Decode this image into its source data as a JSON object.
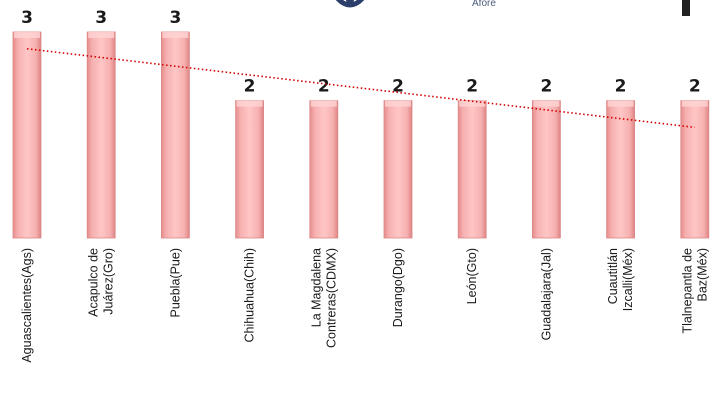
{
  "header": {
    "logo_text": "Afore"
  },
  "colors": {
    "bar_fill": "#f4a3a3",
    "bar_edge": "#d98888",
    "trendline": "#d40000"
  },
  "chart_data": {
    "type": "bar",
    "title": "",
    "xlabel": "",
    "ylabel": "",
    "categories": [
      "Aguascalientes(Ags)",
      "Acapulco de Juárez(Gro)",
      "Puebla(Pue)",
      "Chihuahua(Chih)",
      "La Magdalena Contreras(CDMX)",
      "Durango(Dgo)",
      "León(Gto)",
      "Guadalajara(Jal)",
      "Cuautitlán Izcalli(Méx)",
      "Tlalnepantla de Baz(Méx)"
    ],
    "category_lines": [
      [
        "Aguascalientes(Ags)"
      ],
      [
        "Acapulco de",
        "Juárez(Gro)"
      ],
      [
        "Puebla(Pue)"
      ],
      [
        "Chihuahua(Chih)"
      ],
      [
        "La Magdalena",
        "Contreras(CDMX)"
      ],
      [
        "Durango(Dgo)"
      ],
      [
        "León(Gto)"
      ],
      [
        "Guadalajara(Jal)"
      ],
      [
        "Cuautitlán",
        "Izcalli(Méx)"
      ],
      [
        "Tlalnepantla de",
        "Baz(Méx)"
      ]
    ],
    "values": [
      3,
      3,
      3,
      2,
      2,
      2,
      2,
      2,
      2,
      2
    ],
    "data_labels": [
      "3",
      "3",
      "3",
      "2",
      "2",
      "2",
      "2",
      "2",
      "2",
      "2"
    ],
    "trendline": {
      "type": "linear",
      "style": "dotted"
    },
    "grid": false,
    "legend": "none"
  }
}
